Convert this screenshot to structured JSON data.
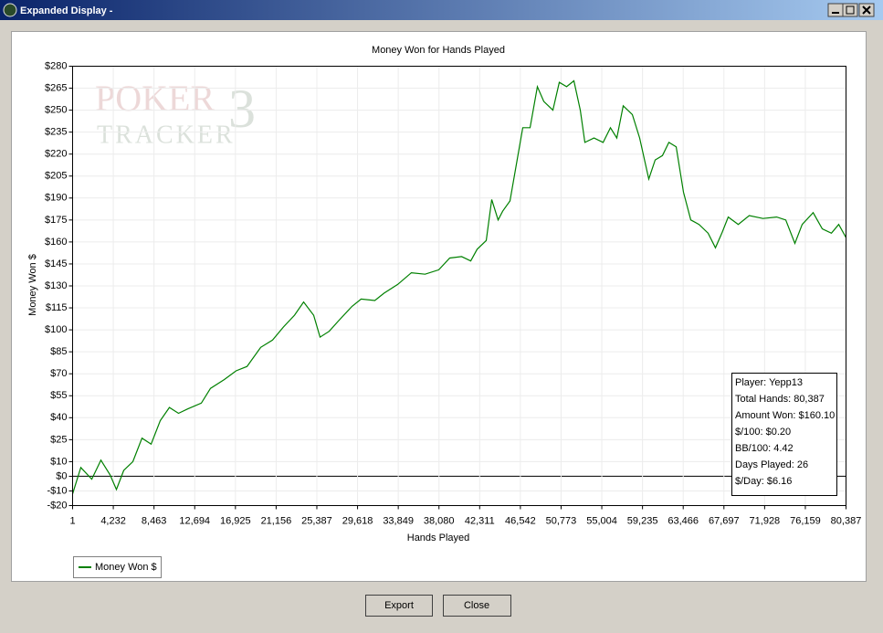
{
  "window": {
    "title": "Expanded Display -",
    "buttons": [
      "Export",
      "Close"
    ]
  },
  "watermark": {
    "line1": "POKER",
    "line2": "TRACKER",
    "mark": "3"
  },
  "chart_data": {
    "type": "line",
    "title": "Money Won for Hands Played",
    "x_label": "Hands Played",
    "y_label": "Money Won $",
    "xlim": [
      1,
      80387
    ],
    "ylim": [
      -20,
      280
    ],
    "xticks": [
      1,
      {
        "value": 4232,
        "label": "4,232"
      },
      {
        "value": 8463,
        "label": "8,463"
      },
      {
        "value": 12694,
        "label": "12,694"
      },
      {
        "value": 16925,
        "label": "16,925"
      },
      {
        "value": 21156,
        "label": "21,156"
      },
      {
        "value": 25387,
        "label": "25,387"
      },
      {
        "value": 29618,
        "label": "29,618"
      },
      {
        "value": 33849,
        "label": "33,849"
      },
      {
        "value": 38080,
        "label": "38,080"
      },
      {
        "value": 42311,
        "label": "42,311"
      },
      {
        "value": 46542,
        "label": "46,542"
      },
      {
        "value": 50773,
        "label": "50,773"
      },
      {
        "value": 55004,
        "label": "55,004"
      },
      {
        "value": 59235,
        "label": "59,235"
      },
      {
        "value": 63466,
        "label": "63,466"
      },
      {
        "value": 67697,
        "label": "67,697"
      },
      {
        "value": 71928,
        "label": "71,928"
      },
      {
        "value": 76159,
        "label": "76,159"
      },
      {
        "value": 80387,
        "label": "80,387"
      }
    ],
    "yticks": [
      {
        "value": -20,
        "label": "-$20"
      },
      {
        "value": -10,
        "label": "-$10"
      },
      {
        "value": 0,
        "label": "$0"
      },
      {
        "value": 10,
        "label": "$10"
      },
      {
        "value": 25,
        "label": "$25"
      },
      {
        "value": 40,
        "label": "$40"
      },
      {
        "value": 55,
        "label": "$55"
      },
      {
        "value": 70,
        "label": "$70"
      },
      {
        "value": 85,
        "label": "$85"
      },
      {
        "value": 100,
        "label": "$100"
      },
      {
        "value": 115,
        "label": "$115"
      },
      {
        "value": 130,
        "label": "$130"
      },
      {
        "value": 145,
        "label": "$145"
      },
      {
        "value": 160,
        "label": "$160"
      },
      {
        "value": 175,
        "label": "$175"
      },
      {
        "value": 190,
        "label": "$190"
      },
      {
        "value": 205,
        "label": "$205"
      },
      {
        "value": 220,
        "label": "$220"
      },
      {
        "value": 235,
        "label": "$235"
      },
      {
        "value": 250,
        "label": "$250"
      },
      {
        "value": 265,
        "label": "$265"
      },
      {
        "value": 280,
        "label": "$280"
      }
    ],
    "grid": true,
    "x": [
      1,
      855,
      1994,
      2943,
      3892,
      4556,
      5316,
      6265,
      7214,
      8163,
      9112,
      10061,
      11010,
      11959,
      13383,
      14332,
      15756,
      16989,
      18128,
      19552,
      20786,
      21925,
      23063,
      24013,
      25056,
      25721,
      26670,
      27619,
      29043,
      29992,
      31415,
      32364,
      33788,
      35212,
      36635,
      38059,
      39198,
      40431,
      41380,
      42045,
      42994,
      43563,
      44228,
      44702,
      45461,
      46126,
      46790,
      47549,
      48308,
      48973,
      49922,
      50586,
      51345,
      52104,
      52769,
      53243,
      54192,
      55142,
      55901,
      56565,
      57229,
      58178,
      58938,
      59887,
      60552,
      61311,
      61975,
      62734,
      63493,
      64253,
      65107,
      66056,
      66815,
      67480,
      68144,
      69188,
      70328,
      71751,
      73175,
      74124,
      75073,
      75832,
      76971,
      77920,
      78869,
      79628,
      80387
    ],
    "series": [
      {
        "name": "Money Won $",
        "color": "#008000",
        "values": [
          -12,
          6,
          -2,
          11,
          1,
          -9,
          4,
          10,
          26,
          22,
          38,
          47,
          43,
          46,
          50,
          60,
          66,
          72,
          75,
          88,
          93,
          102,
          110,
          119,
          110,
          95,
          99,
          106,
          116,
          121,
          120,
          125,
          131,
          139,
          138,
          141,
          149,
          150,
          147,
          155,
          161,
          189,
          175,
          181,
          188,
          213,
          238,
          238,
          266,
          256,
          250,
          269,
          266,
          270,
          250,
          228,
          231,
          228,
          238,
          231,
          253,
          247,
          231,
          203,
          216,
          219,
          228,
          225,
          194,
          175,
          172,
          166,
          156,
          166,
          177,
          172,
          178,
          176,
          177,
          175,
          159,
          172,
          180,
          169,
          166,
          172,
          163
        ]
      }
    ],
    "stats": [
      "Player: Yepp13",
      "Total Hands: 80,387",
      "Amount Won: $160.10",
      "$/100: $0.20",
      "BB/100: 4.42",
      "Days Played: 26",
      "$/Day: $6.16"
    ]
  }
}
